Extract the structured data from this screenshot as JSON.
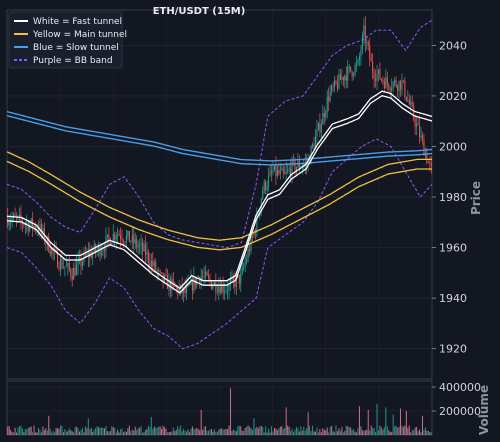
{
  "chart_data": {
    "type": "candlestick",
    "title": "ETH/USDT (15M)",
    "ylabel": "Price",
    "volume_label": "Volume",
    "ylim": [
      1908,
      2054
    ],
    "y_ticks": [
      1920,
      1940,
      1960,
      1980,
      2000,
      2020,
      2040
    ],
    "volume_ylim": [
      0,
      450000
    ],
    "volume_ticks": [
      200000,
      400000
    ],
    "volume_tick_labels": [
      "200000",
      "400000"
    ],
    "grid": true,
    "legend_position": "top-left",
    "colors": {
      "background": "#131722",
      "up": "#26a69a",
      "down": "#ef5350",
      "fast": "#ffffff",
      "main": "#f0c040",
      "slow": "#4a9ee8",
      "bb": "#8a5cf6"
    },
    "legend": [
      {
        "label": "White = Fast tunnel",
        "color": "#ffffff",
        "dash": false
      },
      {
        "label": "Yellow = Main tunnel",
        "color": "#f0c040",
        "dash": false
      },
      {
        "label": "Blue = Slow tunnel",
        "color": "#4a9ee8",
        "dash": false
      },
      {
        "label": "Purple = BB band",
        "color": "#8a5cf6",
        "dash": true
      }
    ],
    "price_path": [
      [
        0,
        1972
      ],
      [
        12,
        1970
      ],
      [
        22,
        1968
      ],
      [
        30,
        1960
      ],
      [
        35,
        1955
      ],
      [
        45,
        1950
      ],
      [
        55,
        1957
      ],
      [
        65,
        1960
      ],
      [
        75,
        1966
      ],
      [
        85,
        1963
      ],
      [
        95,
        1958
      ],
      [
        105,
        1948
      ],
      [
        115,
        1944
      ],
      [
        122,
        1942
      ],
      [
        132,
        1949
      ],
      [
        140,
        1946
      ],
      [
        150,
        1944
      ],
      [
        160,
        1948
      ],
      [
        170,
        1968
      ],
      [
        175,
        1983
      ],
      [
        182,
        1990
      ],
      [
        190,
        1988
      ],
      [
        195,
        1992
      ],
      [
        205,
        1993
      ],
      [
        215,
        2010
      ],
      [
        220,
        2020
      ],
      [
        230,
        2028
      ],
      [
        240,
        2032
      ],
      [
        244,
        2045
      ],
      [
        250,
        2030
      ],
      [
        260,
        2025
      ],
      [
        270,
        2025
      ],
      [
        276,
        2015
      ],
      [
        283,
        2003
      ],
      [
        290,
        1990
      ]
    ],
    "fast_tunnel": [
      [
        0,
        1971.5
      ],
      [
        10,
        1971
      ],
      [
        20,
        1968
      ],
      [
        30,
        1961
      ],
      [
        40,
        1956
      ],
      [
        50,
        1956
      ],
      [
        60,
        1959
      ],
      [
        70,
        1962
      ],
      [
        80,
        1960
      ],
      [
        90,
        1955
      ],
      [
        100,
        1950
      ],
      [
        110,
        1946
      ],
      [
        118,
        1943
      ],
      [
        126,
        1948
      ],
      [
        134,
        1946
      ],
      [
        142,
        1946
      ],
      [
        150,
        1946
      ],
      [
        156,
        1948
      ],
      [
        162,
        1958
      ],
      [
        170,
        1972
      ],
      [
        178,
        1980
      ],
      [
        186,
        1982
      ],
      [
        194,
        1988
      ],
      [
        204,
        1992
      ],
      [
        212,
        2000
      ],
      [
        222,
        2008
      ],
      [
        232,
        2010
      ],
      [
        240,
        2012
      ],
      [
        248,
        2018
      ],
      [
        256,
        2021
      ],
      [
        262,
        2020
      ],
      [
        270,
        2016
      ],
      [
        278,
        2013
      ],
      [
        290,
        2011
      ]
    ],
    "main_tunnel": [
      [
        0,
        1996
      ],
      [
        15,
        1992
      ],
      [
        30,
        1987
      ],
      [
        50,
        1980
      ],
      [
        70,
        1974
      ],
      [
        90,
        1969
      ],
      [
        110,
        1965
      ],
      [
        130,
        1962
      ],
      [
        145,
        1961
      ],
      [
        160,
        1962
      ],
      [
        180,
        1967
      ],
      [
        200,
        1973
      ],
      [
        220,
        1979
      ],
      [
        240,
        1986
      ],
      [
        260,
        1991
      ],
      [
        280,
        1993
      ],
      [
        290,
        1993
      ]
    ],
    "slow_tunnel": [
      [
        0,
        2013
      ],
      [
        20,
        2010
      ],
      [
        40,
        2007
      ],
      [
        60,
        2005
      ],
      [
        80,
        2003
      ],
      [
        100,
        2001
      ],
      [
        120,
        1998
      ],
      [
        140,
        1996
      ],
      [
        160,
        1994
      ],
      [
        180,
        1993.5
      ],
      [
        200,
        1994
      ],
      [
        220,
        1995
      ],
      [
        240,
        1996
      ],
      [
        260,
        1997
      ],
      [
        280,
        1997.5
      ],
      [
        290,
        1998
      ]
    ],
    "bb_upper": [
      [
        0,
        1985
      ],
      [
        10,
        1983
      ],
      [
        20,
        1978
      ],
      [
        30,
        1972
      ],
      [
        40,
        1968
      ],
      [
        50,
        1966
      ],
      [
        60,
        1975
      ],
      [
        70,
        1985
      ],
      [
        80,
        1988
      ],
      [
        90,
        1980
      ],
      [
        100,
        1970
      ],
      [
        110,
        1965
      ],
      [
        120,
        1963
      ],
      [
        130,
        1962
      ],
      [
        140,
        1961
      ],
      [
        150,
        1960
      ],
      [
        160,
        1962
      ],
      [
        170,
        1985
      ],
      [
        178,
        2012
      ],
      [
        190,
        2018
      ],
      [
        202,
        2020
      ],
      [
        212,
        2028
      ],
      [
        222,
        2036
      ],
      [
        232,
        2040
      ],
      [
        242,
        2042
      ],
      [
        252,
        2046
      ],
      [
        262,
        2046
      ],
      [
        272,
        2038
      ],
      [
        282,
        2047
      ],
      [
        290,
        2050
      ]
    ],
    "bb_lower": [
      [
        0,
        1960
      ],
      [
        10,
        1958
      ],
      [
        20,
        1952
      ],
      [
        30,
        1945
      ],
      [
        40,
        1935
      ],
      [
        50,
        1930
      ],
      [
        60,
        1938
      ],
      [
        70,
        1948
      ],
      [
        80,
        1944
      ],
      [
        90,
        1935
      ],
      [
        100,
        1928
      ],
      [
        110,
        1925
      ],
      [
        120,
        1920
      ],
      [
        130,
        1922
      ],
      [
        140,
        1926
      ],
      [
        150,
        1930
      ],
      [
        160,
        1935
      ],
      [
        170,
        1940
      ],
      [
        178,
        1960
      ],
      [
        190,
        1965
      ],
      [
        202,
        1970
      ],
      [
        212,
        1978
      ],
      [
        222,
        1990
      ],
      [
        232,
        1995
      ],
      [
        242,
        2000
      ],
      [
        252,
        2003
      ],
      [
        262,
        2000
      ],
      [
        272,
        1990
      ],
      [
        282,
        1980
      ],
      [
        290,
        1985
      ]
    ],
    "volume_spikes": [
      [
        28,
        160000
      ],
      [
        55,
        140000
      ],
      [
        98,
        150000
      ],
      [
        132,
        210000
      ],
      [
        152,
        390000
      ],
      [
        168,
        140000
      ],
      [
        190,
        230000
      ],
      [
        205,
        190000
      ],
      [
        240,
        240000
      ],
      [
        246,
        210000
      ],
      [
        252,
        260000
      ],
      [
        258,
        230000
      ],
      [
        263,
        170000
      ],
      [
        268,
        220000
      ],
      [
        272,
        200000
      ],
      [
        283,
        160000
      ]
    ]
  }
}
